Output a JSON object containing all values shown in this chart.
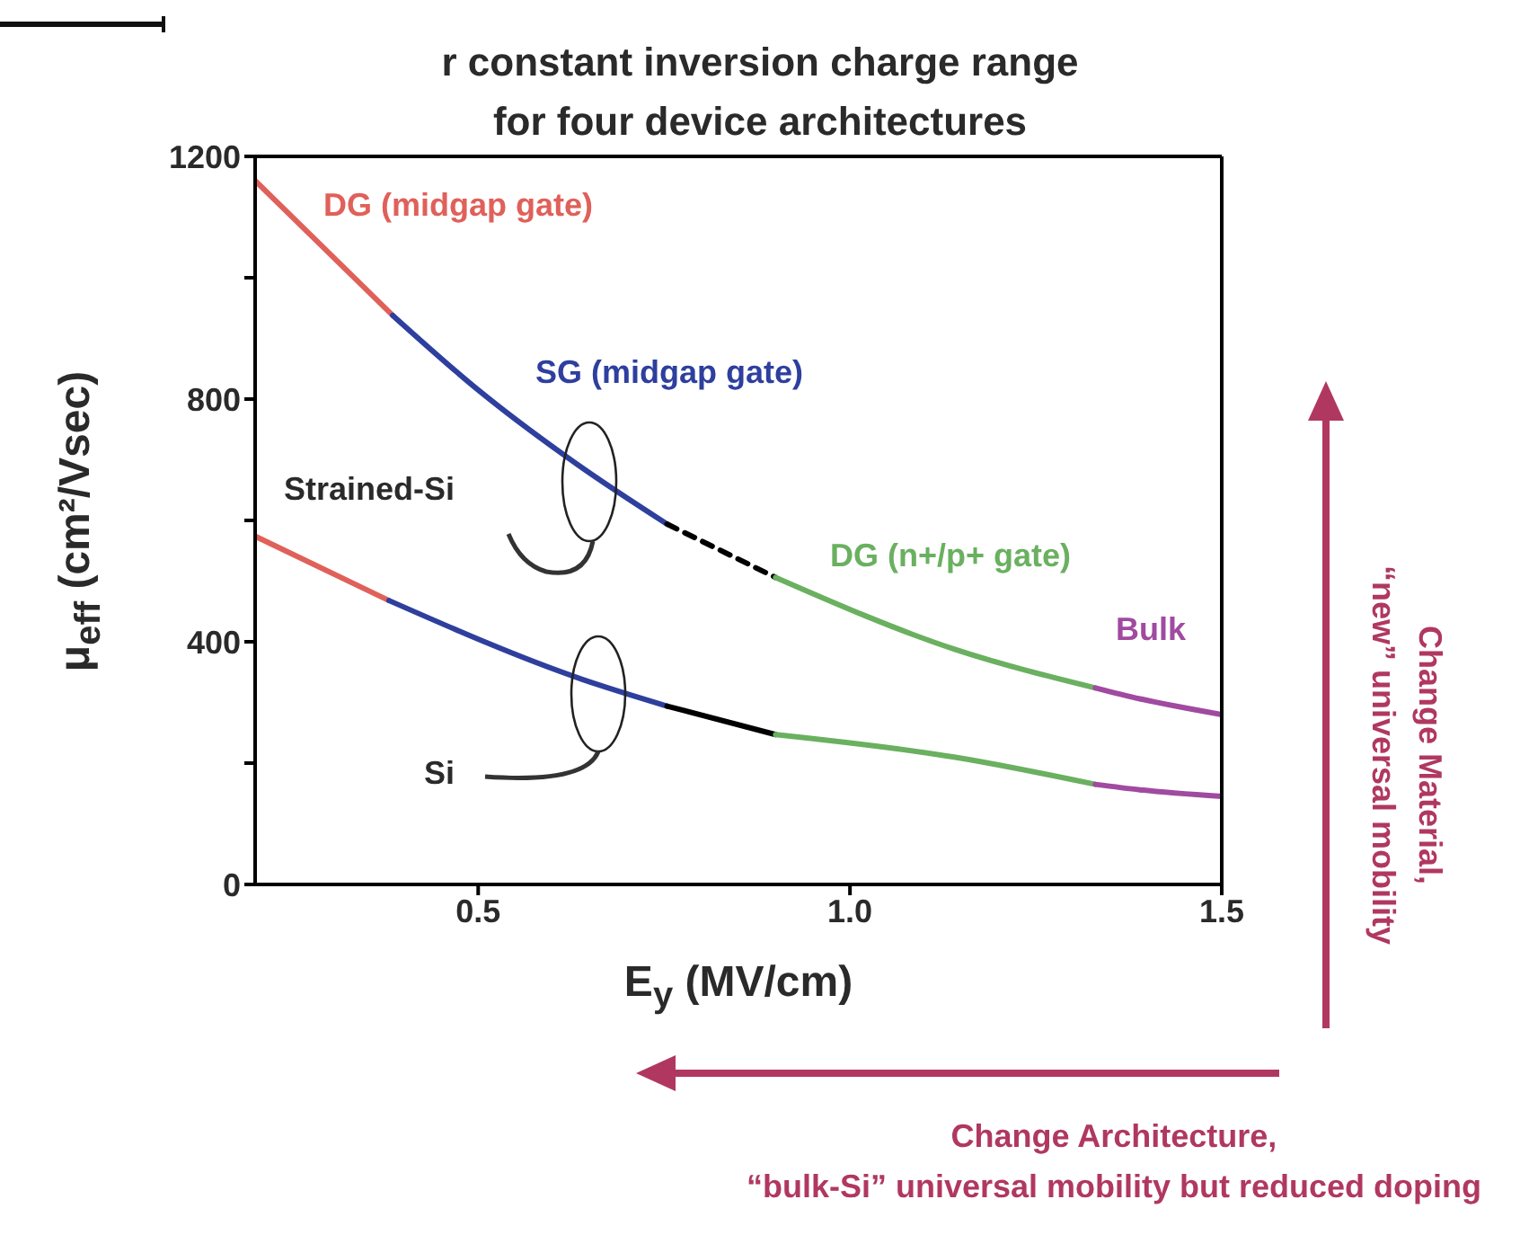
{
  "chart_data": {
    "type": "line",
    "title": "r constant inversion charge range\nfor four device architectures",
    "xlabel": "E$_{y}$ (MV/cm)",
    "ylabel": "μ$_{eff}$ (cm²/Vsec)",
    "xlim": [
      0.2,
      1.5
    ],
    "xticks": [
      0.5,
      {
        "value": 1,
        "label": "1.0"
      },
      1.5
    ],
    "ylim": [
      0,
      1200
    ],
    "yticks": [
      0,
      {
        "value": 200,
        "label": null
      },
      400,
      {
        "value": 600,
        "label": null
      },
      800,
      {
        "value": 1000,
        "label": null
      },
      1200
    ],
    "series": [
      {
        "name": "DG (midgap gate)",
        "color": "#e0605a",
        "x": [
          0.2,
          0.385
        ],
        "values": [
          1160,
          938
        ]
      },
      {
        "name": "SG (midgap gate)",
        "color": "#2e3f9e",
        "x": [
          0.385,
          0.5,
          0.636,
          0.754
        ],
        "values": [
          938,
          815,
          690,
          594
        ]
      },
      {
        "color": "#000000",
        "line_style": "dashed",
        "x": [
          0.754,
          0.9
        ],
        "values": [
          594,
          506
        ]
      },
      {
        "name": "DG (n+/p+ gate)",
        "color": "#6ab060",
        "x": [
          0.9,
          1.14,
          1.33
        ],
        "values": [
          506,
          388,
          324
        ]
      },
      {
        "name": "Bulk",
        "color": "#a04aa0",
        "x": [
          1.33,
          1.39,
          1.5
        ],
        "values": [
          324,
          306,
          280
        ]
      },
      {
        "color": "#e0605a",
        "x": [
          0.2,
          0.38
        ],
        "values": [
          574,
          468
        ]
      },
      {
        "color": "#2e3f9e",
        "x": [
          0.38,
          0.64,
          0.754
        ],
        "values": [
          468,
          338,
          294
        ]
      },
      {
        "color": "#000000",
        "x": [
          0.754,
          0.9
        ],
        "values": [
          294,
          247
        ]
      },
      {
        "color": "#6ab060",
        "x": [
          0.9,
          1.14,
          1.33
        ],
        "values": [
          247,
          210,
          165
        ]
      },
      {
        "color": "#a04aa0",
        "x": [
          1.33,
          1.39,
          1.5
        ],
        "values": [
          165,
          156,
          145
        ]
      }
    ],
    "annotations": [
      "Strained-Si",
      "Si",
      "Change Material,\n“new” universal mobility",
      "Change Architecture,\n“bulk-Si” universal mobility but reduced doping"
    ]
  }
}
